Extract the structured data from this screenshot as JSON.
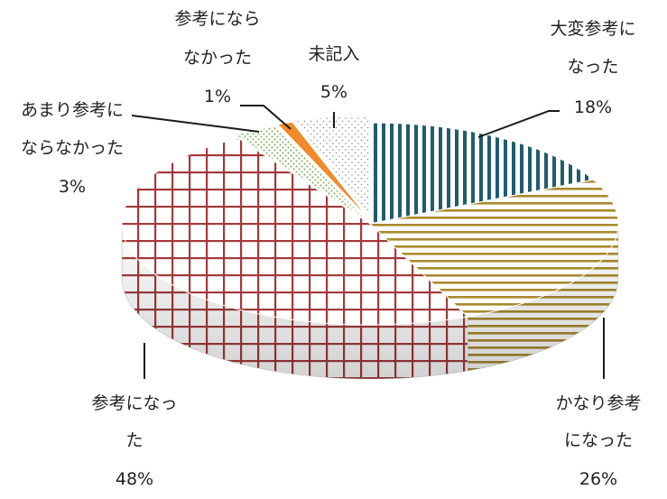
{
  "chart_data": {
    "type": "pie",
    "style": "3d-exploded-pie",
    "title": "",
    "slices": [
      {
        "lines": [
          "大変参考に",
          "なった"
        ],
        "percent_label": "18%",
        "value": 18,
        "color": "#1f5d6b",
        "pattern": "vertical-stripes"
      },
      {
        "lines": [
          "かなり参考",
          "になった"
        ],
        "percent_label": "26%",
        "value": 26,
        "color": "#a98a2c",
        "pattern": "horizontal-stripes"
      },
      {
        "lines": [
          "参考になっ",
          "た"
        ],
        "percent_label": "48%",
        "value": 48,
        "color": "#a23a3a",
        "pattern": "grid"
      },
      {
        "lines": [
          "あまり参考に",
          "ならなかった"
        ],
        "percent_label": "3%",
        "value": 3,
        "color": "#8fb86a",
        "pattern": "dots"
      },
      {
        "lines": [
          "参考になら",
          "なかった"
        ],
        "percent_label": "1%",
        "value": 1,
        "color": "#f08a2a",
        "pattern": "solid"
      },
      {
        "lines": [
          "未記入"
        ],
        "percent_label": "5%",
        "value": 5,
        "color": "#7f8aa0",
        "pattern": "fine-dots"
      }
    ]
  }
}
